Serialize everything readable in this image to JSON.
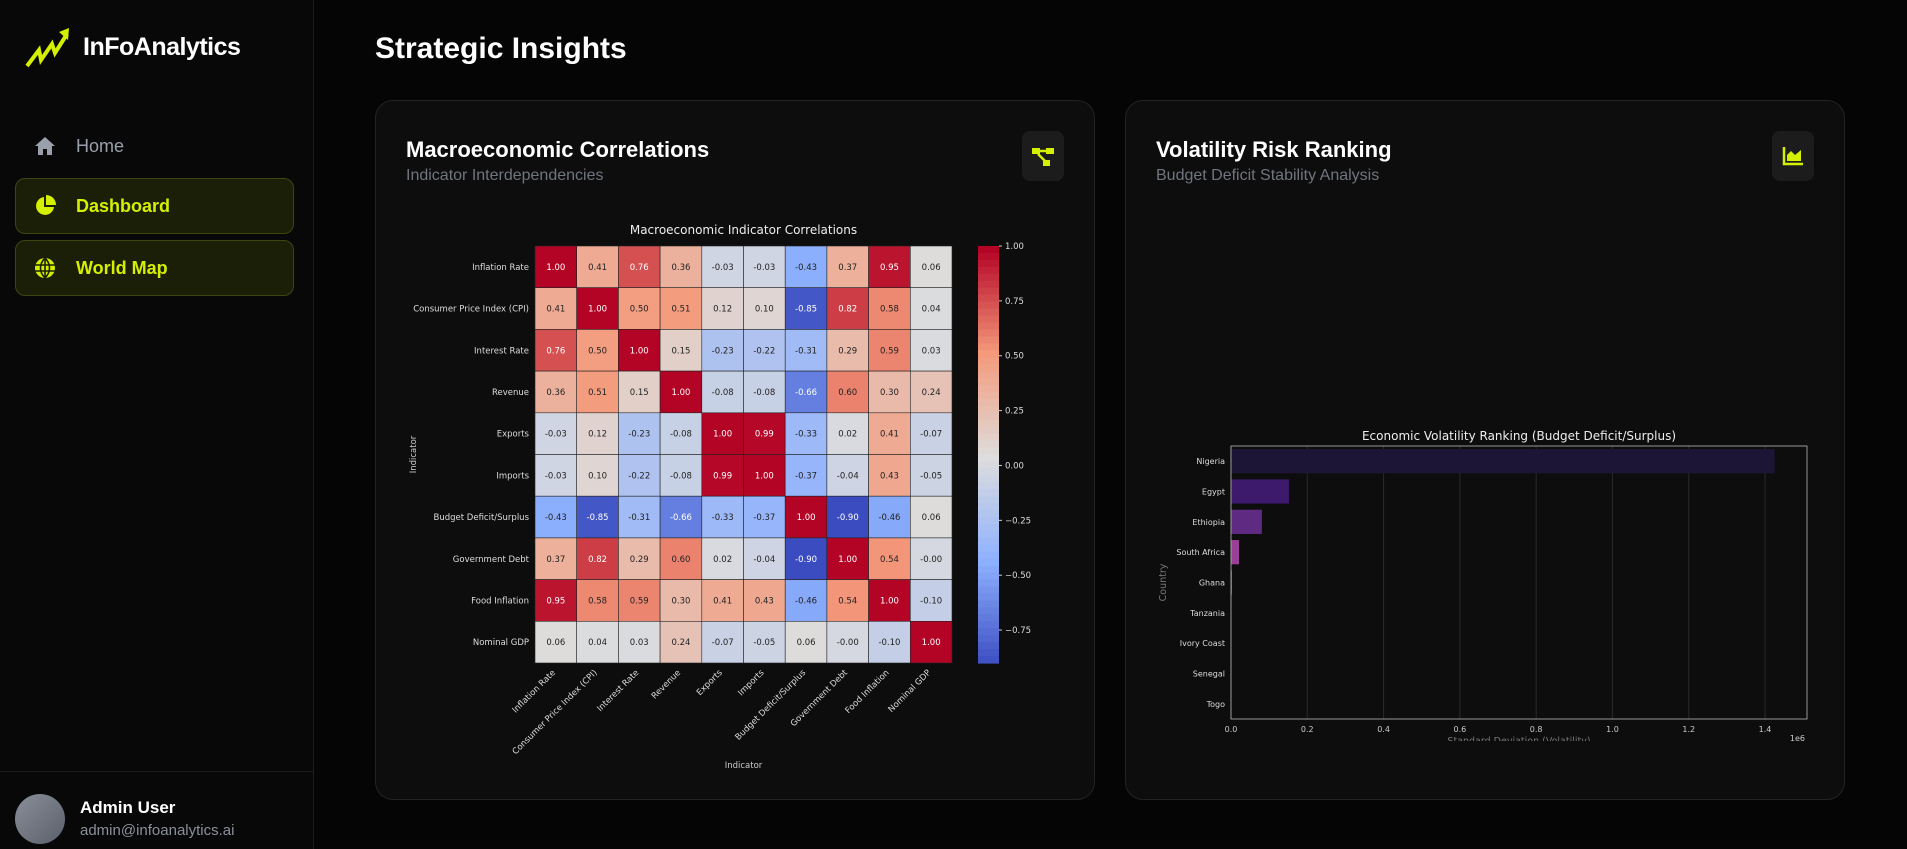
{
  "app": {
    "name": "InFoAnalytics",
    "accent": "#d4f000"
  },
  "sidebar": {
    "items": [
      {
        "label": "Home",
        "icon": "home-icon",
        "active": false
      },
      {
        "label": "Dashboard",
        "icon": "pie-chart-icon",
        "active": true
      },
      {
        "label": "World Map",
        "icon": "globe-icon",
        "active": true
      }
    ]
  },
  "user": {
    "name": "Admin User",
    "email": "admin@infoanalytics.ai"
  },
  "page": {
    "title": "Strategic Insights"
  },
  "cards": [
    {
      "title": "Macroeconomic Correlations",
      "subtitle": "Indicator Interdependencies",
      "icon": "hierarchy-icon"
    },
    {
      "title": "Volatility Risk Ranking",
      "subtitle": "Budget Deficit Stability Analysis",
      "icon": "area-chart-icon"
    }
  ],
  "chart_data": [
    {
      "type": "heatmap",
      "title": "Macroeconomic Indicator Correlations",
      "xlabel": "Indicator",
      "ylabel": "Indicator",
      "colormap": "coolwarm",
      "vmin": -0.9,
      "vmax": 1.0,
      "colorbar_ticks": [
        "1.00",
        "0.75",
        "0.50",
        "0.25",
        "0.00",
        "−0.25",
        "−0.50",
        "−0.75"
      ],
      "labels": [
        "Inflation Rate",
        "Consumer Price Index (CPI)",
        "Interest Rate",
        "Revenue",
        "Exports",
        "Imports",
        "Budget Deficit/Surplus",
        "Government Debt",
        "Food Inflation",
        "Nominal GDP"
      ],
      "values": [
        [
          1.0,
          0.41,
          0.76,
          0.36,
          -0.03,
          -0.03,
          -0.43,
          0.37,
          0.95,
          0.06
        ],
        [
          0.41,
          1.0,
          0.5,
          0.51,
          0.12,
          0.1,
          -0.85,
          0.82,
          0.58,
          0.04
        ],
        [
          0.76,
          0.5,
          1.0,
          0.15,
          -0.23,
          -0.22,
          -0.31,
          0.29,
          0.59,
          0.03
        ],
        [
          0.36,
          0.51,
          0.15,
          1.0,
          -0.08,
          -0.08,
          -0.66,
          0.6,
          0.3,
          0.24
        ],
        [
          -0.03,
          0.12,
          -0.23,
          -0.08,
          1.0,
          0.99,
          -0.33,
          0.02,
          0.41,
          -0.07
        ],
        [
          -0.03,
          0.1,
          -0.22,
          -0.08,
          0.99,
          1.0,
          -0.37,
          -0.04,
          0.43,
          -0.05
        ],
        [
          -0.43,
          -0.85,
          -0.31,
          -0.66,
          -0.33,
          -0.37,
          1.0,
          -0.9,
          -0.46,
          0.06
        ],
        [
          0.37,
          0.82,
          0.29,
          0.6,
          0.02,
          -0.04,
          -0.9,
          1.0,
          0.54,
          -0.0
        ],
        [
          0.95,
          0.58,
          0.59,
          0.3,
          0.41,
          0.43,
          -0.46,
          0.54,
          1.0,
          -0.1
        ],
        [
          0.06,
          0.04,
          0.03,
          0.24,
          -0.07,
          -0.05,
          0.06,
          -0.0,
          -0.1,
          1.0
        ]
      ]
    },
    {
      "type": "bar",
      "orientation": "horizontal",
      "title": "Economic Volatility Ranking (Budget Deficit/Surplus)",
      "xlabel": "Standard Deviation (Volatility)",
      "ylabel": "Country",
      "x_multiplier": "1e6",
      "xlim": [
        0,
        1.51
      ],
      "xticks": [
        "0.0",
        "0.2",
        "0.4",
        "0.6",
        "0.8",
        "1.0",
        "1.2",
        "1.4"
      ],
      "grid": "x",
      "categories": [
        "Nigeria",
        "Egypt",
        "Ethiopia",
        "South Africa",
        "Ghana",
        "Tanzania",
        "Ivory Coast",
        "Senegal",
        "Togo"
      ],
      "values": [
        1.425,
        0.152,
        0.081,
        0.021,
        0.002,
        0,
        0,
        0,
        0
      ],
      "colors": [
        "#1d1535",
        "#3d1a6b",
        "#5e2a82",
        "#9a3f96",
        "#d05a8f",
        "#e8707e",
        "#f0907a",
        "#f4b08a",
        "#f8d0a8"
      ]
    }
  ]
}
